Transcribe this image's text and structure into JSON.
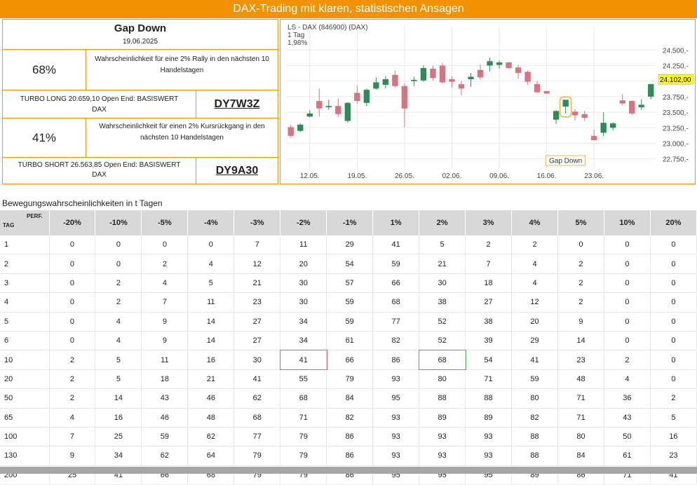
{
  "banner": "DAX-Trading mit klaren, statistischen Ansagen",
  "info": {
    "title": "Gap Down",
    "date": "19.06.2025",
    "long": {
      "probability": "68%",
      "desc": "Wahrscheinlichkeit für eine 2% Rally in den nächsten 10 Handelstagen",
      "product": "TURBO LONG 20.659,10 Open End: BASISWERT DAX",
      "code": "DY7W3Z"
    },
    "short": {
      "probability": "41%",
      "desc": "Wahrscheinlichkeit für einen 2% Kursrückgang in den nächsten 10 Handelstagen",
      "product": "TURBO SHORT 26.563,85 Open End: BASISWERT DAX",
      "code": "DY9A30"
    }
  },
  "chart_data": {
    "type": "candlestick",
    "header": [
      "LS - DAX (846900) (DAX)",
      "1 Tag",
      "1,98%"
    ],
    "ylim": [
      22600,
      24650
    ],
    "yticks": [
      "24.500,-",
      "24.250,-",
      "24.000,-",
      "23.750,-",
      "23.500,-",
      "23.250,-",
      "23.000,-",
      "22.750,-"
    ],
    "ytick_values": [
      24500,
      24250,
      24000,
      23750,
      23500,
      23250,
      23000,
      22750
    ],
    "xticks": [
      "12.05.",
      "19.05.",
      "26.05.",
      "02.06.",
      "09.06.",
      "16.06.",
      "23.06."
    ],
    "xtick_index": [
      2.5,
      7.5,
      12.5,
      17.5,
      22.5,
      27.5,
      32.5
    ],
    "last_price": "24.102,00",
    "annotation": "Gap Down",
    "annotation_index": 29,
    "up_color": "#2e8b57",
    "down_color": "#d9737f",
    "candles": [
      {
        "o": 23260,
        "h": 23300,
        "l": 23090,
        "c": 23120
      },
      {
        "o": 23200,
        "h": 23320,
        "l": 23180,
        "c": 23300
      },
      {
        "o": 23430,
        "h": 23530,
        "l": 23420,
        "c": 23480
      },
      {
        "o": 23680,
        "h": 23880,
        "l": 23430,
        "c": 23560
      },
      {
        "o": 23580,
        "h": 23700,
        "l": 23540,
        "c": 23600
      },
      {
        "o": 23600,
        "h": 23720,
        "l": 23420,
        "c": 23470
      },
      {
        "o": 23360,
        "h": 23660,
        "l": 23330,
        "c": 23650
      },
      {
        "o": 23810,
        "h": 23930,
        "l": 23640,
        "c": 23680
      },
      {
        "o": 23650,
        "h": 23880,
        "l": 23600,
        "c": 23860
      },
      {
        "o": 23880,
        "h": 24060,
        "l": 23860,
        "c": 23980
      },
      {
        "o": 23940,
        "h": 24080,
        "l": 23880,
        "c": 24030
      },
      {
        "o": 24100,
        "h": 24170,
        "l": 23900,
        "c": 23920
      },
      {
        "o": 23920,
        "h": 23960,
        "l": 23260,
        "c": 23560
      },
      {
        "o": 24000,
        "h": 24070,
        "l": 23920,
        "c": 24020
      },
      {
        "o": 24010,
        "h": 24250,
        "l": 23990,
        "c": 24210
      },
      {
        "o": 24200,
        "h": 24250,
        "l": 24010,
        "c": 24050
      },
      {
        "o": 24250,
        "h": 24290,
        "l": 23960,
        "c": 23980
      },
      {
        "o": 24030,
        "h": 24080,
        "l": 23900,
        "c": 23990
      },
      {
        "o": 23950,
        "h": 24000,
        "l": 23770,
        "c": 23880
      },
      {
        "o": 24030,
        "h": 24130,
        "l": 23910,
        "c": 24070
      },
      {
        "o": 24180,
        "h": 24270,
        "l": 24020,
        "c": 24060
      },
      {
        "o": 24250,
        "h": 24380,
        "l": 24160,
        "c": 24320
      },
      {
        "o": 24260,
        "h": 24330,
        "l": 24200,
        "c": 24300
      },
      {
        "o": 24300,
        "h": 24310,
        "l": 24200,
        "c": 24210
      },
      {
        "o": 24220,
        "h": 24260,
        "l": 24040,
        "c": 24130
      },
      {
        "o": 24150,
        "h": 24170,
        "l": 23940,
        "c": 23990
      },
      {
        "o": 23950,
        "h": 24000,
        "l": 23810,
        "c": 23820
      },
      {
        "o": 23840,
        "h": 23840,
        "l": 23800,
        "c": 23800
      },
      {
        "o": 23380,
        "h": 23530,
        "l": 23310,
        "c": 23520
      },
      {
        "o": 23590,
        "h": 23690,
        "l": 23480,
        "c": 23700
      },
      {
        "o": 23510,
        "h": 23550,
        "l": 23370,
        "c": 23450
      },
      {
        "o": 23470,
        "h": 23520,
        "l": 23360,
        "c": 23410
      },
      {
        "o": 23120,
        "h": 23220,
        "l": 23060,
        "c": 23050
      },
      {
        "o": 23170,
        "h": 23500,
        "l": 23110,
        "c": 23330
      },
      {
        "o": 23250,
        "h": 23340,
        "l": 23210,
        "c": 23320
      },
      {
        "o": 23690,
        "h": 23790,
        "l": 23610,
        "c": 23640
      },
      {
        "o": 23680,
        "h": 23690,
        "l": 23450,
        "c": 23480
      },
      {
        "o": 23580,
        "h": 23710,
        "l": 23540,
        "c": 23620
      },
      {
        "o": 23750,
        "h": 23960,
        "l": 23710,
        "c": 23950
      }
    ]
  },
  "table": {
    "title": "Bewegungswahrscheinlichkeiten in t Tagen",
    "corner_top": "PERF.",
    "corner_bottom": "TAG",
    "headers": [
      "-20%",
      "-10%",
      "-5%",
      "-4%",
      "-3%",
      "-2%",
      "-1%",
      "1%",
      "2%",
      "3%",
      "4%",
      "5%",
      "10%",
      "20%"
    ],
    "highlight_color_red": "#e06060",
    "highlight_color_green": "#4caf50",
    "rows": [
      [
        "1",
        "0",
        "0",
        "0",
        "0",
        "7",
        "11",
        "29",
        "41",
        "5",
        "2",
        "2",
        "0",
        "0",
        "0"
      ],
      [
        "2",
        "0",
        "0",
        "2",
        "4",
        "12",
        "20",
        "54",
        "59",
        "21",
        "7",
        "4",
        "2",
        "0",
        "0"
      ],
      [
        "3",
        "0",
        "2",
        "4",
        "5",
        "21",
        "30",
        "57",
        "66",
        "30",
        "18",
        "4",
        "2",
        "0",
        "0"
      ],
      [
        "4",
        "0",
        "2",
        "7",
        "11",
        "23",
        "30",
        "59",
        "68",
        "38",
        "27",
        "12",
        "2",
        "0",
        "0"
      ],
      [
        "5",
        "0",
        "4",
        "9",
        "14",
        "27",
        "34",
        "59",
        "77",
        "52",
        "38",
        "20",
        "9",
        "0",
        "0"
      ],
      [
        "6",
        "0",
        "4",
        "9",
        "14",
        "27",
        "34",
        "61",
        "82",
        "52",
        "39",
        "29",
        "14",
        "0",
        "0"
      ],
      [
        "10",
        "2",
        "5",
        "11",
        "16",
        "30",
        "41",
        "66",
        "86",
        "68",
        "54",
        "41",
        "23",
        "2",
        "0"
      ],
      [
        "20",
        "2",
        "5",
        "18",
        "21",
        "41",
        "55",
        "79",
        "93",
        "80",
        "71",
        "59",
        "48",
        "4",
        "0"
      ],
      [
        "50",
        "2",
        "14",
        "43",
        "46",
        "62",
        "68",
        "84",
        "95",
        "88",
        "88",
        "80",
        "71",
        "36",
        "2"
      ],
      [
        "65",
        "4",
        "16",
        "46",
        "48",
        "68",
        "71",
        "82",
        "93",
        "89",
        "89",
        "82",
        "71",
        "43",
        "5"
      ],
      [
        "100",
        "7",
        "25",
        "59",
        "62",
        "77",
        "79",
        "86",
        "93",
        "93",
        "93",
        "88",
        "80",
        "50",
        "16"
      ],
      [
        "130",
        "9",
        "34",
        "62",
        "64",
        "79",
        "79",
        "86",
        "93",
        "93",
        "93",
        "88",
        "84",
        "61",
        "23"
      ],
      [
        "200",
        "25",
        "41",
        "66",
        "68",
        "79",
        "79",
        "86",
        "95",
        "95",
        "95",
        "89",
        "86",
        "71",
        "41"
      ]
    ]
  }
}
